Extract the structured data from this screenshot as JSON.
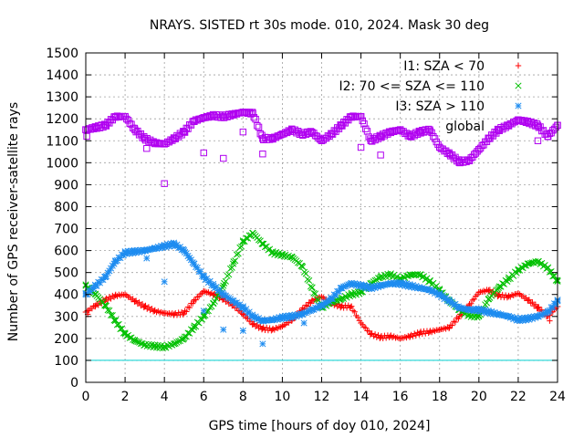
{
  "chart_data": {
    "type": "scatter",
    "title": "NRAYS. SISTED rt 30s mode. 010, 2024. Mask 30 deg",
    "xlabel": "GPS time [hours of doy 010, 2024]",
    "ylabel": "Number of GPS receiver-satellite rays",
    "xlim": [
      0,
      24
    ],
    "ylim": [
      0,
      1500
    ],
    "xticks": [
      "0",
      "2",
      "4",
      "6",
      "8",
      "10",
      "12",
      "14",
      "16",
      "18",
      "20",
      "22",
      "24"
    ],
    "yticks": [
      "0",
      "100",
      "200",
      "300",
      "400",
      "500",
      "600",
      "700",
      "800",
      "900",
      "1000",
      "1100",
      "1200",
      "1300",
      "1400",
      "1500"
    ],
    "grid": true,
    "legend_position": "top-right",
    "reference_line": {
      "y": 100,
      "color": "#00d0d0"
    },
    "series": [
      {
        "name": "I1: SZA < 70",
        "marker": "plus",
        "color": "#ff0000",
        "x": [
          0,
          0.5,
          1,
          1.5,
          2,
          2.5,
          3,
          3.5,
          4,
          4.5,
          5,
          5.5,
          6,
          6.5,
          7,
          7.5,
          8,
          8.5,
          9,
          9.5,
          10,
          10.5,
          11,
          11.5,
          12,
          12.5,
          13,
          13.5,
          14,
          14.5,
          15,
          15.5,
          16,
          16.5,
          17,
          17.5,
          18,
          18.5,
          19,
          19.5,
          20,
          20.5,
          21,
          21.5,
          22,
          22.5,
          23,
          23.5,
          24
        ],
        "y": [
          320,
          350,
          375,
          395,
          400,
          370,
          345,
          325,
          315,
          310,
          315,
          370,
          415,
          400,
          380,
          350,
          310,
          265,
          245,
          240,
          255,
          285,
          330,
          370,
          390,
          360,
          345,
          345,
          270,
          220,
          205,
          210,
          200,
          210,
          225,
          230,
          240,
          250,
          300,
          350,
          410,
          420,
          395,
          390,
          405,
          375,
          340,
          300,
          345
        ]
      },
      {
        "name": "I2: 70 <= SZA <= 110",
        "marker": "cross",
        "color": "#00c000",
        "x": [
          0,
          0.5,
          1,
          1.5,
          2,
          2.5,
          3,
          3.5,
          4,
          4.5,
          5,
          5.5,
          6,
          6.5,
          7,
          7.5,
          8,
          8.5,
          9,
          9.5,
          10,
          10.5,
          11,
          11.5,
          12,
          12.5,
          13,
          13.5,
          14,
          14.5,
          15,
          15.5,
          16,
          16.5,
          17,
          17.5,
          18,
          18.5,
          19,
          19.5,
          20,
          20.5,
          21,
          21.5,
          22,
          22.5,
          23,
          23.5,
          24
        ],
        "y": [
          440,
          400,
          350,
          280,
          220,
          190,
          170,
          165,
          160,
          175,
          200,
          250,
          300,
          360,
          440,
          540,
          640,
          680,
          630,
          590,
          580,
          570,
          530,
          430,
          340,
          365,
          380,
          400,
          410,
          450,
          480,
          490,
          470,
          490,
          490,
          460,
          420,
          370,
          330,
          305,
          300,
          380,
          430,
          470,
          510,
          540,
          550,
          520,
          460
        ]
      },
      {
        "name": "I3: SZA > 110",
        "marker": "star",
        "color": "#1e8cf0",
        "x": [
          0,
          0.5,
          1,
          1.5,
          2,
          2.5,
          3,
          3.5,
          4,
          4.5,
          5,
          5.5,
          6,
          6.5,
          7,
          7.5,
          8,
          8.5,
          9,
          9.5,
          10,
          10.5,
          11,
          11.5,
          12,
          12.5,
          13,
          13.5,
          14,
          14.5,
          15,
          15.5,
          16,
          16.5,
          17,
          17.5,
          18,
          18.5,
          19,
          19.5,
          20,
          20.5,
          21,
          21.5,
          22,
          22.5,
          23,
          23.5,
          24
        ],
        "y": [
          400,
          440,
          480,
          550,
          590,
          595,
          600,
          610,
          620,
          630,
          600,
          540,
          480,
          440,
          400,
          370,
          340,
          300,
          280,
          285,
          295,
          300,
          310,
          330,
          350,
          380,
          430,
          450,
          440,
          430,
          440,
          450,
          450,
          440,
          430,
          420,
          400,
          370,
          340,
          330,
          330,
          320,
          310,
          300,
          285,
          290,
          300,
          320,
          370
        ]
      },
      {
        "name": "global",
        "marker": "square",
        "color": "#b000f0",
        "x": [
          0,
          0.5,
          1,
          1.5,
          2,
          2.5,
          3,
          3.5,
          4,
          4.5,
          5,
          5.5,
          6,
          6.5,
          7,
          7.5,
          8,
          8.5,
          9,
          9.5,
          10,
          10.5,
          11,
          11.5,
          12,
          12.5,
          13,
          13.5,
          14,
          14.5,
          15,
          15.5,
          16,
          16.5,
          17,
          17.5,
          18,
          18.5,
          19,
          19.5,
          20,
          20.5,
          21,
          21.5,
          22,
          22.5,
          23,
          23.5,
          24
        ],
        "y": [
          1150,
          1160,
          1170,
          1210,
          1210,
          1150,
          1110,
          1090,
          1085,
          1110,
          1140,
          1190,
          1205,
          1215,
          1210,
          1220,
          1230,
          1225,
          1110,
          1110,
          1130,
          1150,
          1130,
          1140,
          1100,
          1130,
          1170,
          1210,
          1210,
          1100,
          1120,
          1140,
          1150,
          1120,
          1140,
          1150,
          1070,
          1040,
          1005,
          1010,
          1060,
          1110,
          1150,
          1170,
          1195,
          1185,
          1170,
          1120,
          1170
        ]
      }
    ],
    "outliers": [
      {
        "series": "I1: SZA < 70",
        "x": 0.1,
        "y": 310
      },
      {
        "series": "I1: SZA < 70",
        "x": 23.6,
        "y": 280
      },
      {
        "series": "I3: SZA > 110",
        "x": 3.1,
        "y": 565
      },
      {
        "series": "I3: SZA > 110",
        "x": 4.0,
        "y": 458
      },
      {
        "series": "I3: SZA > 110",
        "x": 6.0,
        "y": 325
      },
      {
        "series": "I3: SZA > 110",
        "x": 7.0,
        "y": 240
      },
      {
        "series": "I3: SZA > 110",
        "x": 8.0,
        "y": 235
      },
      {
        "series": "I3: SZA > 110",
        "x": 9.0,
        "y": 175
      },
      {
        "series": "I3: SZA > 110",
        "x": 11.1,
        "y": 270
      },
      {
        "series": "global",
        "x": 0.05,
        "y": 1120
      },
      {
        "series": "global",
        "x": 3.1,
        "y": 1065
      },
      {
        "series": "global",
        "x": 4.0,
        "y": 905
      },
      {
        "series": "global",
        "x": 6.0,
        "y": 1045
      },
      {
        "series": "global",
        "x": 7.0,
        "y": 1020
      },
      {
        "series": "global",
        "x": 8.0,
        "y": 1140
      },
      {
        "series": "global",
        "x": 9.0,
        "y": 1040
      },
      {
        "series": "global",
        "x": 14.0,
        "y": 1070
      },
      {
        "series": "global",
        "x": 15.0,
        "y": 1035
      },
      {
        "series": "global",
        "x": 19.0,
        "y": 1000
      },
      {
        "series": "global",
        "x": 23.0,
        "y": 1100
      }
    ]
  }
}
